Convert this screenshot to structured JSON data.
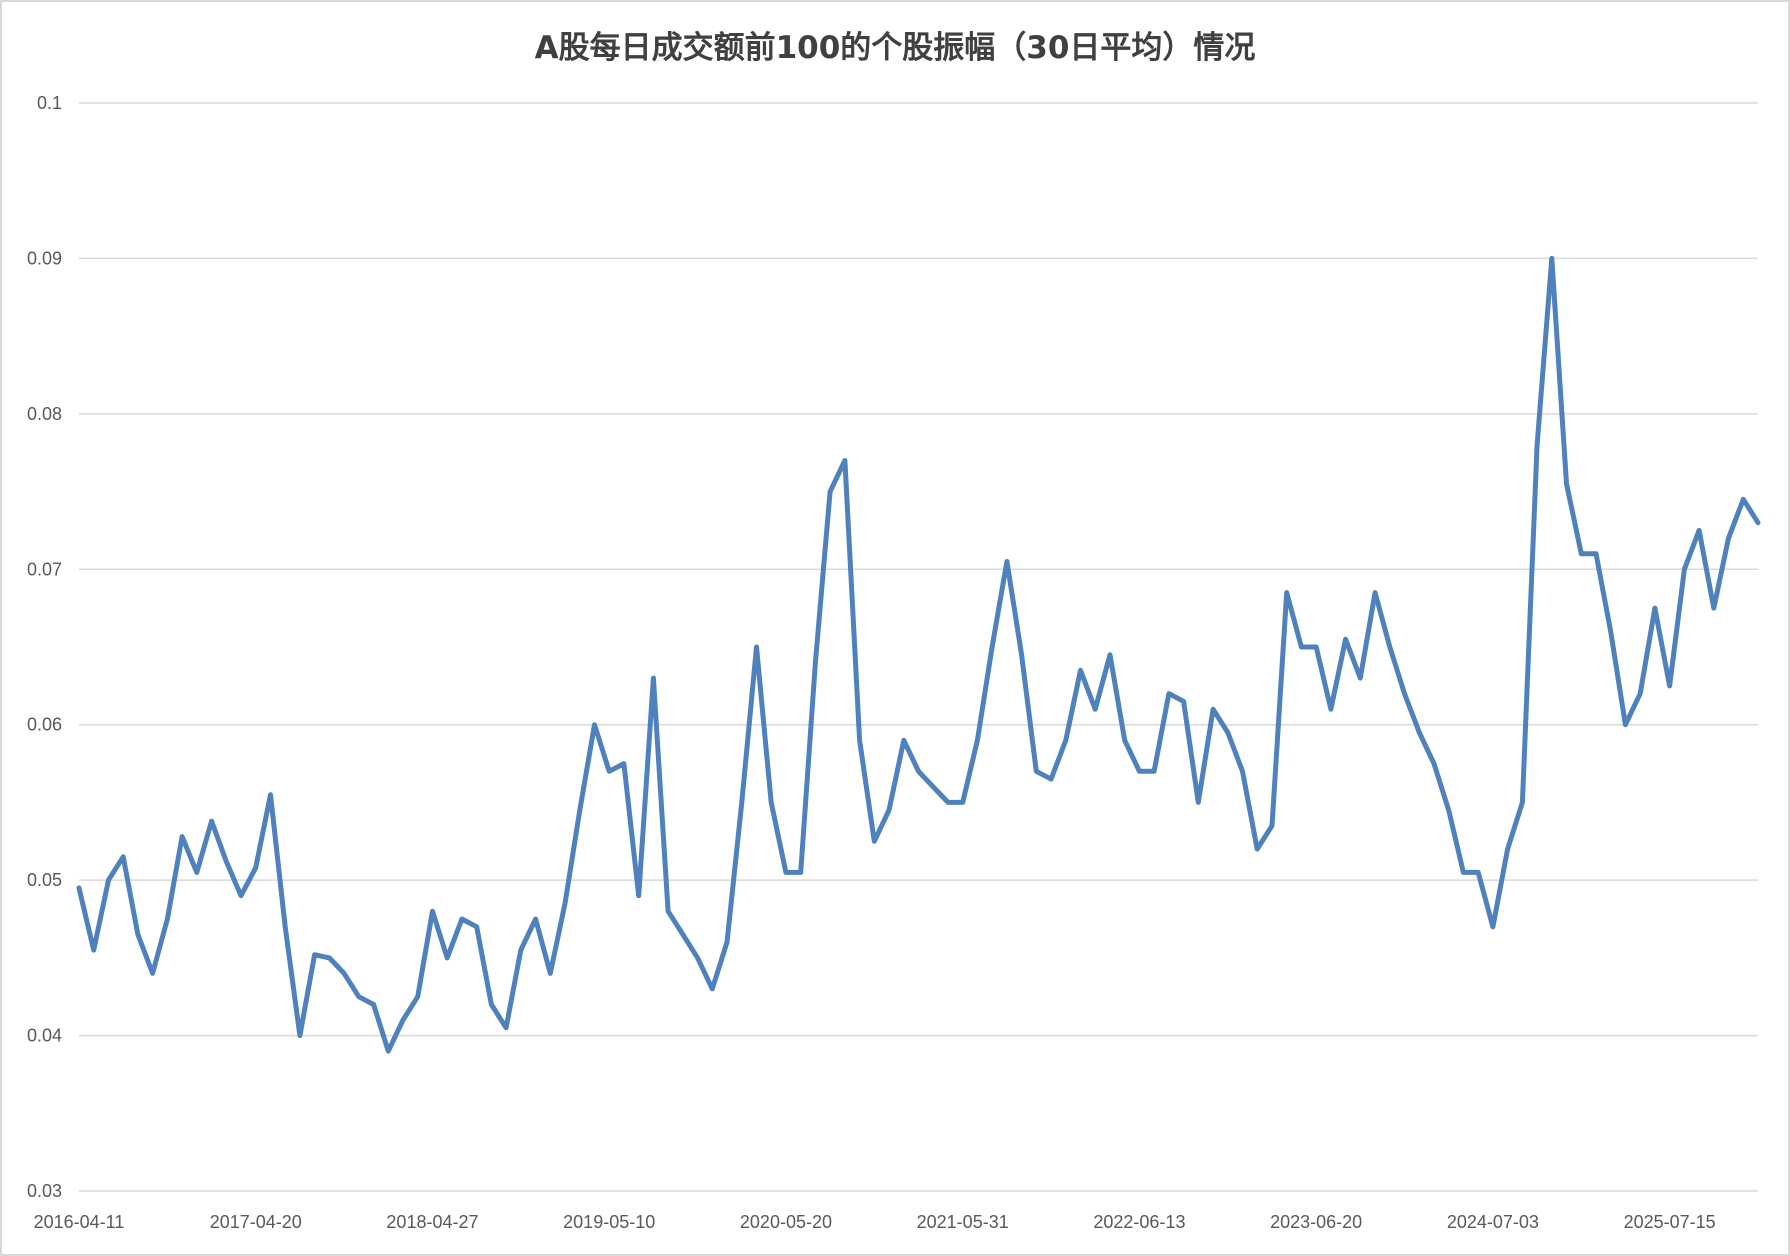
{
  "chart_data": {
    "type": "line",
    "title": "A股每日成交额前100的个股振幅（30日平均）情况",
    "xlabel": "",
    "ylabel": "",
    "ylim": [
      0.03,
      0.1
    ],
    "y_ticks": [
      "0.1",
      "0.09",
      "0.08",
      "0.07",
      "0.06",
      "0.05",
      "0.04",
      "0.03"
    ],
    "y_tick_values": [
      0.1,
      0.09,
      0.08,
      0.07,
      0.06,
      0.05,
      0.04,
      0.03
    ],
    "x_tick_labels": [
      "2016-04-11",
      "2017-04-20",
      "2018-04-27",
      "2019-05-10",
      "2020-05-20",
      "2021-05-31",
      "2022-06-13",
      "2023-06-20",
      "2024-07-03",
      "2025-07-15"
    ],
    "grid": true,
    "legend": "none",
    "line_color": "#4f81bd",
    "series": [
      {
        "values": [
          0.0495,
          0.0455,
          0.05,
          0.0515,
          0.0465,
          0.044,
          0.0475,
          0.0528,
          0.0505,
          0.0538,
          0.0512,
          0.049,
          0.0508,
          0.0555,
          0.047,
          0.04,
          0.0452,
          0.045,
          0.044,
          0.0425,
          0.042,
          0.039,
          0.041,
          0.0425,
          0.048,
          0.045,
          0.0475,
          0.047,
          0.042,
          0.0405,
          0.0455,
          0.0475,
          0.044,
          0.0485,
          0.0545,
          0.06,
          0.057,
          0.0575,
          0.049,
          0.063,
          0.048,
          0.0465,
          0.045,
          0.043,
          0.046,
          0.055,
          0.065,
          0.055,
          0.0505,
          0.0505,
          0.064,
          0.075,
          0.077,
          0.059,
          0.0525,
          0.0545,
          0.059,
          0.057,
          0.056,
          0.055,
          0.055,
          0.059,
          0.065,
          0.0705,
          0.0645,
          0.057,
          0.0565,
          0.059,
          0.0635,
          0.061,
          0.0645,
          0.059,
          0.057,
          0.057,
          0.062,
          0.0615,
          0.055,
          0.061,
          0.0595,
          0.057,
          0.052,
          0.0535,
          0.0685,
          0.065,
          0.065,
          0.061,
          0.0655,
          0.063,
          0.0685,
          0.065,
          0.062,
          0.0595,
          0.0575,
          0.0545,
          0.0505,
          0.0505,
          0.047,
          0.052,
          0.055,
          0.078,
          0.09,
          0.0755,
          0.071,
          0.071,
          0.066,
          0.06,
          0.062,
          0.0675,
          0.0625,
          0.07,
          0.0725,
          0.0675,
          0.072,
          0.0745,
          0.073
        ]
      }
    ]
  }
}
